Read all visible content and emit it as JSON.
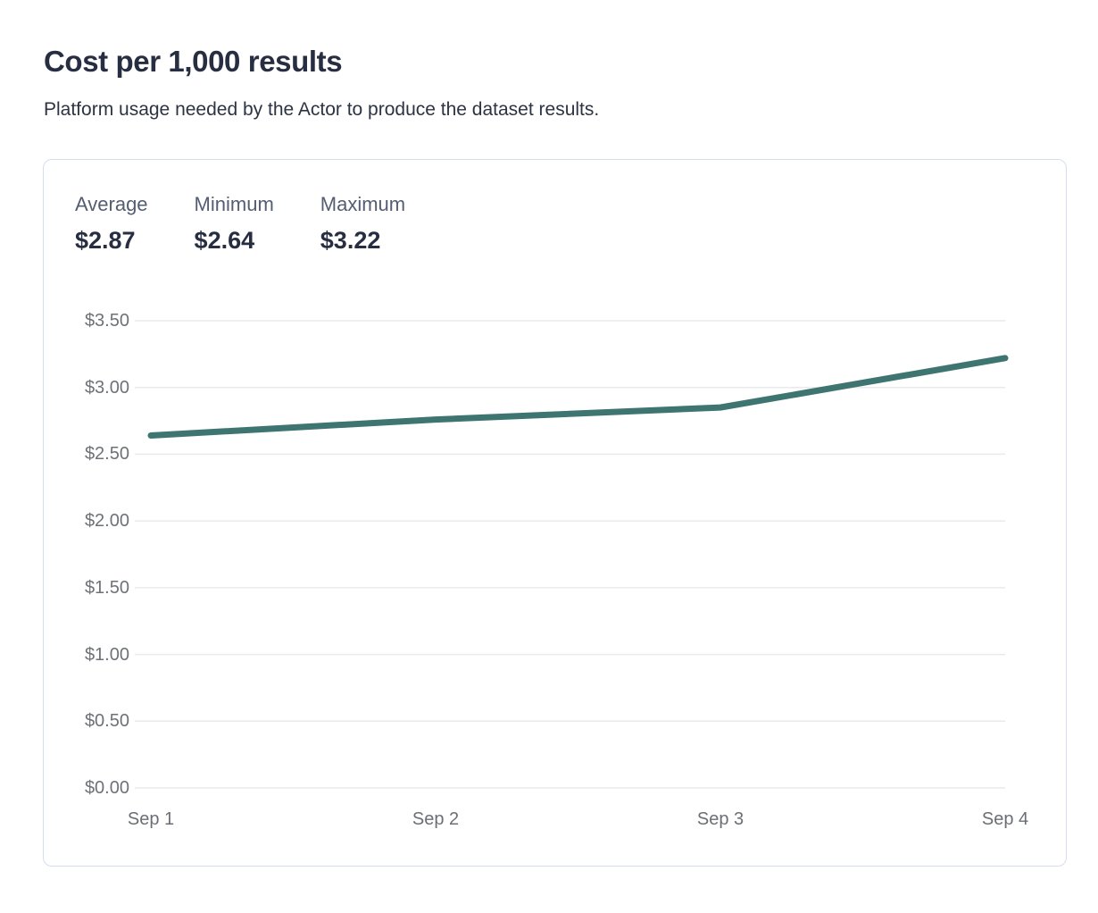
{
  "page": {
    "title": "Cost per 1,000 results",
    "subtitle": "Platform usage needed by the Actor to produce the dataset results."
  },
  "stats": {
    "items": [
      {
        "label": "Average",
        "value": "$2.87"
      },
      {
        "label": "Minimum",
        "value": "$2.64"
      },
      {
        "label": "Maximum",
        "value": "$3.22"
      }
    ]
  },
  "chart_data": {
    "type": "line",
    "title": "Cost per 1,000 results",
    "x": [
      "Sep 1",
      "Sep 2",
      "Sep 3",
      "Sep 4"
    ],
    "series": [
      {
        "name": "Cost per 1,000 results",
        "values": [
          2.64,
          2.76,
          2.85,
          3.22
        ]
      }
    ],
    "ylim": [
      0,
      3.5
    ],
    "ytick_step": 0.5,
    "ytick_labels": [
      "$0.00",
      "$0.50",
      "$1.00",
      "$1.50",
      "$2.00",
      "$2.50",
      "$3.00",
      "$3.50"
    ],
    "grid": true,
    "legend": false,
    "line_color": "#3e7571",
    "grid_color": "#e9eaec"
  },
  "colors": {
    "title_text": "#272e41",
    "stat_label_text": "#545d72",
    "axis_text": "#6e7277",
    "card_border": "#d7ddf0",
    "accent_line": "#3e7571"
  }
}
